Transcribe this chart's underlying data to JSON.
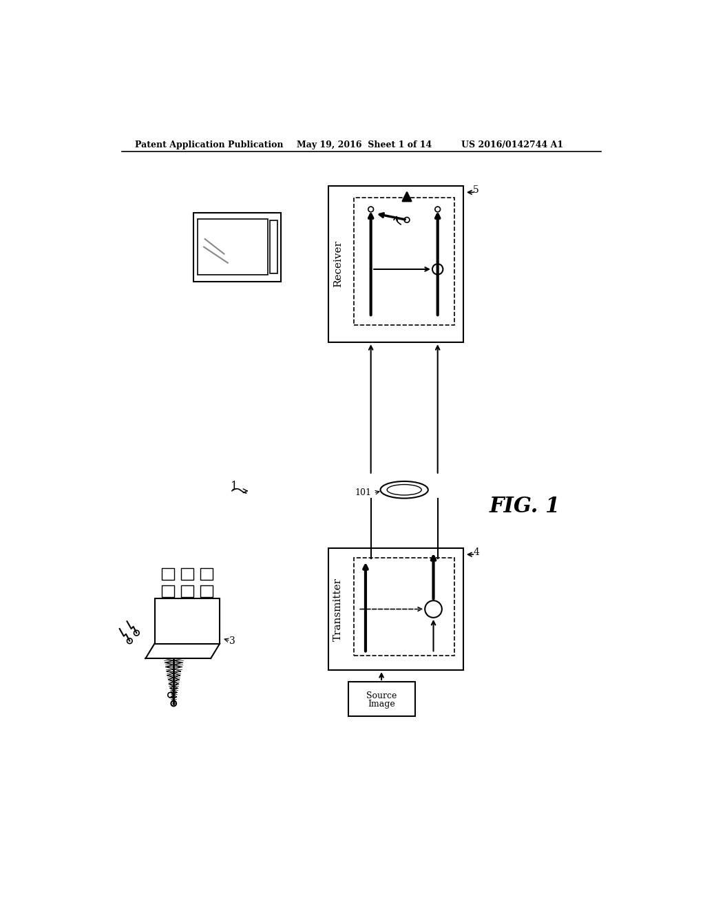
{
  "title_left": "Patent Application Publication",
  "title_mid": "May 19, 2016  Sheet 1 of 14",
  "title_right": "US 2016/0142744 A1",
  "fig_label": "FIG. 1",
  "bg_color": "#ffffff",
  "line_color": "#000000",
  "gray_color": "#888888"
}
